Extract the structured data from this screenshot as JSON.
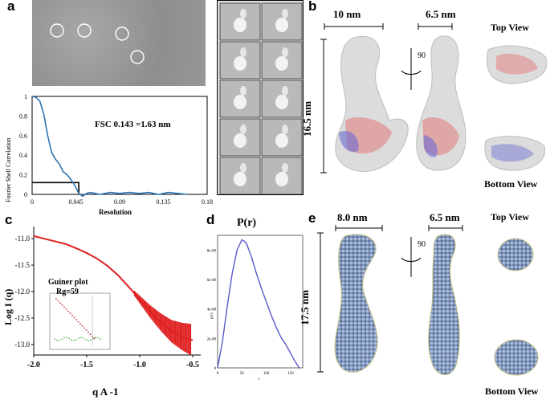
{
  "panels": {
    "a": {
      "letter": "a",
      "fsc_annotation": "FSC 0.143 =1.63 nm",
      "chart_data": {
        "type": "line",
        "title": "",
        "xlabel": "Resolution",
        "ylabel": "Fourier Shell Correlation",
        "xlim": [
          0,
          0.18
        ],
        "ylim": [
          0,
          1
        ],
        "x_ticks": [
          "0",
          "0.045",
          "0.09",
          "0.135",
          "0.18"
        ],
        "y_ticks": [
          "0",
          "0.2",
          "0.4",
          "0.6",
          "0.8",
          "1"
        ],
        "threshold": {
          "x": 0.048,
          "y": 0.12
        },
        "series": [
          {
            "color": "#2e75b6",
            "x": [
              0,
              0.004,
              0.008,
              0.012,
              0.016,
              0.02,
              0.024,
              0.028,
              0.032,
              0.036,
              0.04,
              0.044,
              0.048,
              0.052,
              0.056,
              0.06,
              0.07,
              0.08,
              0.09,
              0.1,
              0.11,
              0.12,
              0.13,
              0.14,
              0.15,
              0.16
            ],
            "y": [
              1.0,
              0.99,
              0.95,
              0.82,
              0.6,
              0.43,
              0.36,
              0.31,
              0.23,
              0.2,
              0.15,
              0.09,
              0.01,
              -0.02,
              0.01,
              0.02,
              0.0,
              0.02,
              0.01,
              0.02,
              0.01,
              0.02,
              0.0,
              0.02,
              0.01,
              0.0
            ]
          }
        ]
      }
    },
    "b": {
      "letter": "b",
      "dim_width": "10 nm",
      "dim_width2": "6.5 nm",
      "dim_height": "16.5 nm",
      "rotation": "90",
      "top_view": "Top View",
      "bottom_view": "Bottom View"
    },
    "c": {
      "letter": "c",
      "guinier_title": "Guiner plot",
      "rg": "Rg=59",
      "chart_data": {
        "type": "line",
        "xlabel": "q A -1",
        "ylabel": "Log I (q)",
        "xlim": [
          -2.0,
          -0.5
        ],
        "ylim": [
          -13.2,
          -10.8
        ],
        "x_ticks": [
          "-2.0",
          "-1.5",
          "-1.0",
          "-0.5"
        ],
        "y_ticks": [
          "-11.0",
          "-11.5",
          "-12.0",
          "-12.5",
          "-13.0"
        ],
        "series": [
          {
            "color": "#e02020",
            "x": [
              -2.0,
              -1.9,
              -1.8,
              -1.7,
              -1.6,
              -1.5,
              -1.4,
              -1.3,
              -1.2,
              -1.1,
              -1.0,
              -0.9,
              -0.8,
              -0.7,
              -0.6,
              -0.5
            ],
            "y": [
              -10.95,
              -11.0,
              -11.05,
              -11.1,
              -11.18,
              -11.27,
              -11.38,
              -11.52,
              -11.7,
              -11.92,
              -12.15,
              -12.38,
              -12.58,
              -12.75,
              -12.85,
              -12.92
            ]
          }
        ]
      }
    },
    "d": {
      "letter": "d",
      "title": "P(r)",
      "chart_data": {
        "type": "line",
        "title": "P(r)",
        "xlabel": "r",
        "ylabel": "p(r)",
        "xlim": [
          0,
          175
        ],
        "ylim": [
          0,
          9e-05
        ],
        "x_ticks": [
          "0",
          "50",
          "100",
          "150"
        ],
        "y_ticks": [
          "0",
          "2e-08",
          "4e-08",
          "6e-08",
          "8e-08"
        ],
        "series": [
          {
            "color": "#5a5acd",
            "x": [
              0,
              10,
              20,
              30,
              40,
              50,
              55,
              60,
              70,
              80,
              90,
              100,
              110,
              120,
              130,
              140,
              150,
              160,
              168
            ],
            "y": [
              0,
              1.8e-05,
              4.2e-05,
              6.4e-05,
              8e-05,
              8.7e-05,
              8.6e-05,
              8.4e-05,
              7.5e-05,
              6.4e-05,
              5.4e-05,
              4.5e-05,
              3.6e-05,
              2.8e-05,
              2.1e-05,
              1.6e-05,
              1e-05,
              4e-06,
              0
            ]
          }
        ]
      }
    },
    "e": {
      "letter": "e",
      "dim_width": "8.0 nm",
      "dim_width2": "6.5 nm",
      "dim_height": "17.5 nm",
      "rotation": "90",
      "top_view": "Top View",
      "bottom_view": "Bottom View"
    }
  },
  "colors": {
    "fsc_line": "#2e75b6",
    "saxs_curve": "#e02020",
    "pr_curve": "#5a5acd",
    "bead_blue": "#8fa8d0",
    "map_gray": "#d8d8d8"
  }
}
